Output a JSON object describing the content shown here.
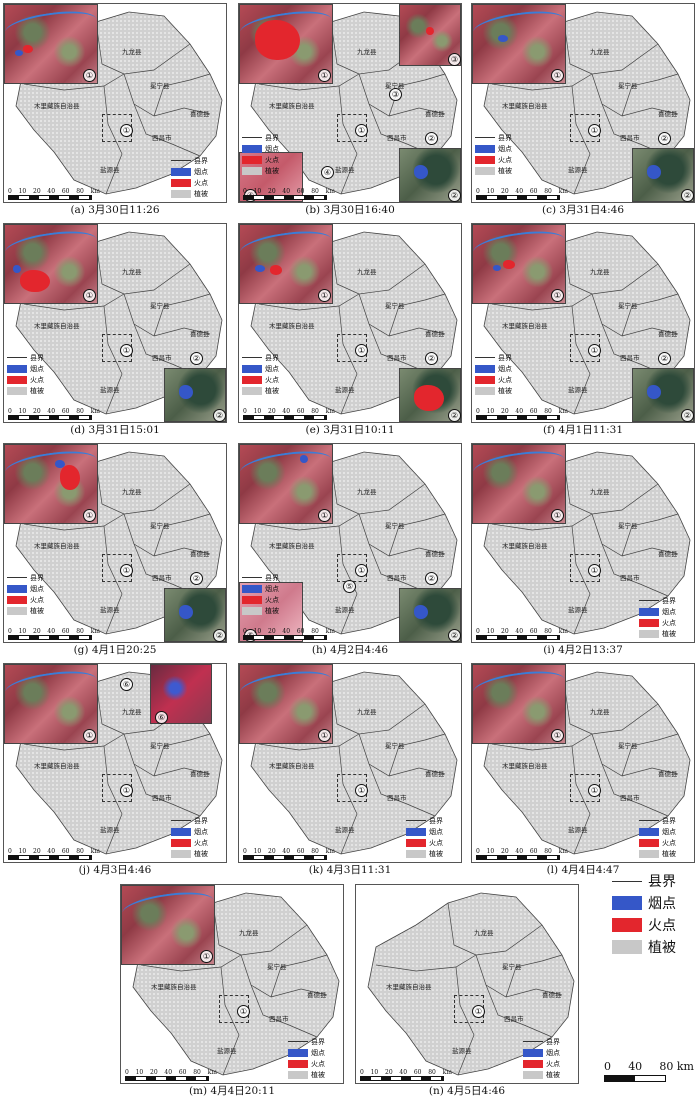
{
  "colors": {
    "county_line": "#555555",
    "smoke": "#3557c8",
    "fire": "#e3262d",
    "vegetation": "#c8c8c8"
  },
  "counties": {
    "jiulong": "九龙县",
    "muli": "木里藏族自治县",
    "mianning": "冕宁县",
    "xide": "喜德县",
    "xichang": "西昌市",
    "yanyuan": "盐源县"
  },
  "legend": {
    "county": "县界",
    "smoke": "烟点",
    "fire": "火点",
    "veg": "植被"
  },
  "scale": {
    "ticks": [
      "0",
      "10",
      "20",
      "40",
      "60",
      "80"
    ],
    "unit": "km"
  },
  "global_legend": {
    "county": "县界",
    "smoke": "烟点",
    "fire": "火点",
    "veg": "植被"
  },
  "global_scale": {
    "ticks": [
      "0",
      "40",
      "80"
    ],
    "unit": "km"
  },
  "markers": {
    "m1": "①",
    "m2": "②",
    "m3": "③",
    "m4": "④",
    "m5": "⑤",
    "m6": "⑥"
  },
  "panels": [
    {
      "caption": "(a) 3月30日11:26"
    },
    {
      "caption": "(b) 3月30日16:40"
    },
    {
      "caption": "(c) 3月31日4:46"
    },
    {
      "caption": "(d) 3月31日15:01"
    },
    {
      "caption": "(e) 3月31日10:11"
    },
    {
      "caption": "(f) 4月1日11:31"
    },
    {
      "caption": "(g) 4月1日20:25"
    },
    {
      "caption": "(h) 4月2日4:46"
    },
    {
      "caption": "(i) 4月2日13:37"
    },
    {
      "caption": "(j) 4月3日4:46"
    },
    {
      "caption": "(k) 4月3日11:31"
    },
    {
      "caption": "(l) 4月4日4:47"
    },
    {
      "caption": "(m) 4月4日20:11"
    },
    {
      "caption": "(n) 4月5日4:46"
    }
  ]
}
